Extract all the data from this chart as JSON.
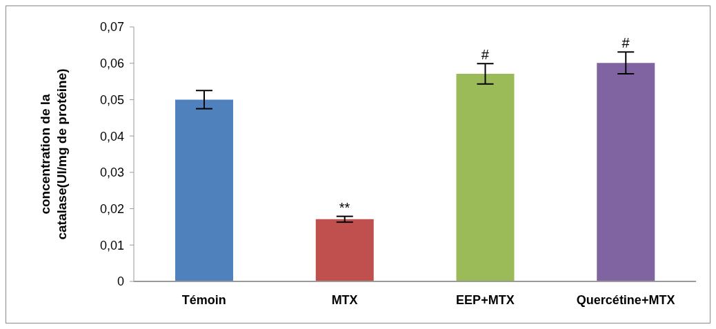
{
  "chart_data": {
    "type": "bar",
    "ylabel": "concentration de la\ncatalase(UI/mg de protéine)",
    "categories": [
      "Témoin",
      "MTX",
      "EEP+MTX",
      "Quercétine+MTX"
    ],
    "values": [
      0.05,
      0.0171,
      0.0571,
      0.0601
    ],
    "errors": [
      0.0025,
      0.0008,
      0.0028,
      0.003
    ],
    "colors": [
      "#4f81bd",
      "#c0504d",
      "#9bbb59",
      "#8064a2"
    ],
    "ylim": [
      0,
      0.07
    ],
    "yticks": [
      {
        "value": 0,
        "label": "0"
      },
      {
        "value": 0.01,
        "label": "0,01"
      },
      {
        "value": 0.02,
        "label": "0,02"
      },
      {
        "value": 0.03,
        "label": "0,03"
      },
      {
        "value": 0.04,
        "label": "0,04"
      },
      {
        "value": 0.05,
        "label": "0,05"
      },
      {
        "value": 0.06,
        "label": "0,06"
      },
      {
        "value": 0.07,
        "label": "0,07"
      }
    ],
    "value_labels": [
      null,
      "**",
      "#",
      "#"
    ],
    "grid": false,
    "legend": false
  }
}
